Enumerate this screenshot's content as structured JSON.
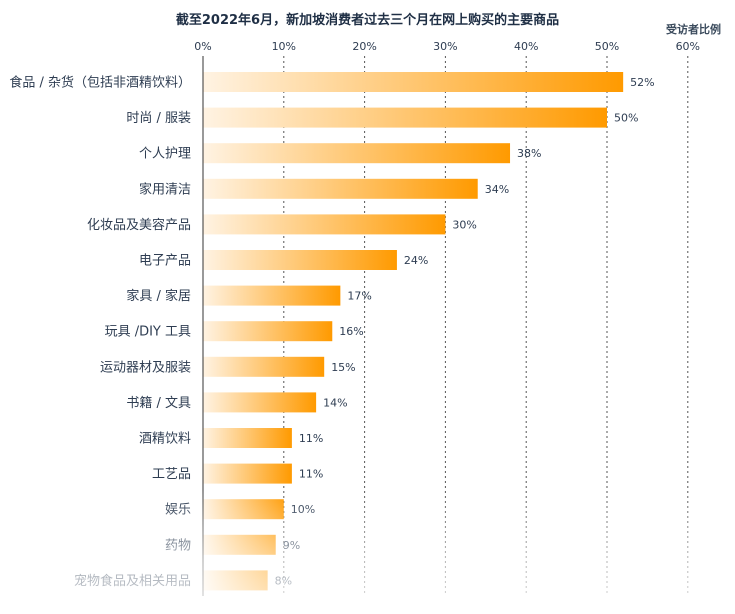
{
  "header": {
    "title": "截至2022年6月，新加坡消费者过去三个月在网上购买的主要商品",
    "unit_label": "受访者比例"
  },
  "colors": {
    "bar_start": "#fff3e3",
    "bar_end": "#ff9a00",
    "grid": "#555555",
    "axis": "#333333"
  },
  "chart_data": {
    "type": "bar",
    "orientation": "horizontal",
    "title": "截至2022年6月，新加坡消费者过去三个月在网上购买的主要商品",
    "xlabel": "受访者比例",
    "ylabel": "",
    "xlim": [
      0,
      60
    ],
    "ticks": [
      0,
      10,
      20,
      30,
      40,
      50,
      60
    ],
    "tick_suffix": "%",
    "grid": "vertical dotted",
    "categories": [
      "食品 / 杂货（包括非酒精饮料）",
      "时尚 / 服装",
      "个人护理",
      "家用清洁",
      "化妆品及美容产品",
      "电子产品",
      "家具 / 家居",
      "玩具 /DIY 工具",
      "运动器材及服装",
      "书籍 / 文具",
      "酒精饮料",
      "工艺品",
      "娱乐",
      "药物",
      "宠物食品及相关用品"
    ],
    "values": [
      52,
      50,
      38,
      34,
      30,
      24,
      17,
      16,
      15,
      14,
      11,
      11,
      10,
      9,
      8
    ],
    "value_labels": [
      "52%",
      "50%",
      "38%",
      "34%",
      "30%",
      "24%",
      "17%",
      "16%",
      "15%",
      "14%",
      "11%",
      "11%",
      "10%",
      "9%",
      "8%"
    ]
  }
}
